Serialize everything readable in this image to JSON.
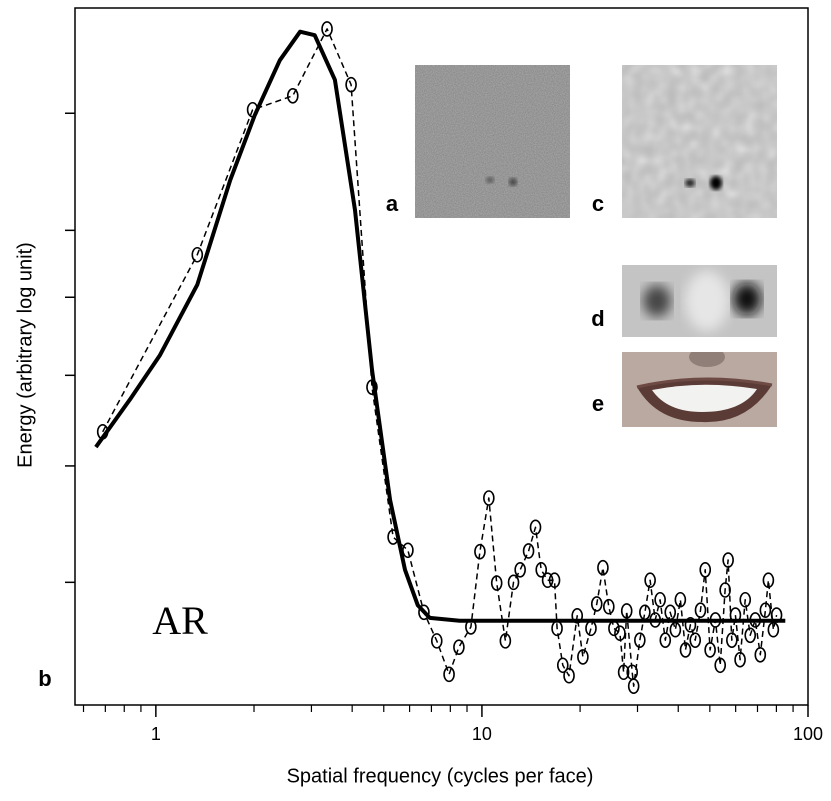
{
  "chart_data": {
    "type": "line",
    "xlabel": "Spatial frequency (cycles per face)",
    "ylabel": "Energy (arbitrary log unit)",
    "xscale": "log",
    "xlim": [
      0.565,
      100
    ],
    "ylim": [
      0,
      100
    ],
    "xticks": [
      1,
      10,
      100
    ],
    "yticks": [
      17.6,
      34.3,
      47.3,
      58.5,
      68.1,
      84.9
    ],
    "series": [
      {
        "style": "dashed-circles",
        "color": "#000000",
        "x": [
          0.687,
          1.34,
          1.98,
          2.63,
          3.35,
          3.97,
          4.6,
          5.34,
          5.93,
          6.64,
          7.27,
          7.93,
          8.5,
          9.25,
          9.86,
          10.5,
          11.1,
          11.8,
          12.5,
          13.1,
          13.9,
          14.6,
          15.2,
          15.9,
          16.7,
          17.0,
          17.7,
          18.5,
          19.6,
          20.4,
          21.6,
          22.5,
          23.5,
          24.5,
          25.4,
          26.5,
          27.2,
          27.8,
          28.9,
          29.2,
          30.5,
          31.6,
          32.8,
          34.0,
          35.2,
          36.5,
          37.8,
          39.2,
          40.6,
          42.1,
          43.6,
          45.1,
          46.8,
          48.4,
          50.1,
          52.0,
          53.8,
          55.7,
          56.9,
          58.4,
          59.9,
          61.9,
          64.2,
          66.5,
          68.9,
          71.4,
          74.0,
          75.6,
          78.3,
          80.1
        ],
        "values": [
          39.2,
          64.6,
          85.4,
          87.4,
          97.0,
          89.0,
          45.6,
          24.1,
          22.2,
          13.3,
          9.2,
          4.4,
          8.3,
          11.2,
          22.0,
          29.7,
          17.5,
          9.2,
          17.6,
          19.4,
          22.1,
          25.5,
          19.4,
          17.9,
          17.9,
          11.0,
          5.7,
          4.2,
          12.8,
          6.9,
          11.0,
          14.5,
          19.7,
          14.1,
          11.0,
          10.3,
          4.7,
          13.5,
          4.7,
          2.7,
          9.3,
          13.3,
          17.9,
          12.2,
          15.1,
          9.3,
          13.3,
          10.8,
          15.1,
          7.9,
          11.5,
          9.3,
          13.6,
          19.4,
          7.9,
          12.2,
          5.7,
          16.5,
          20.8,
          9.3,
          12.9,
          6.5,
          15.1,
          10.0,
          12.2,
          7.2,
          13.6,
          17.9,
          10.8,
          12.9
        ]
      },
      {
        "style": "solid",
        "color": "#000000",
        "x": [
          0.655,
          0.832,
          1.03,
          1.34,
          1.69,
          2.01,
          2.4,
          2.77,
          3.07,
          3.54,
          4.08,
          4.6,
          5.23,
          5.81,
          6.36,
          6.92,
          8.54,
          85.2
        ],
        "values": [
          37.0,
          43.8,
          50.2,
          60.3,
          75.3,
          84.6,
          92.5,
          96.6,
          96.1,
          89.7,
          71.0,
          48.1,
          29.4,
          19.4,
          14.3,
          12.5,
          12.1,
          12.1
        ]
      }
    ],
    "annotations": {
      "subject": "AR",
      "panel_b": "b",
      "panel_a": "a",
      "panel_c": "c",
      "panel_d": "d",
      "panel_e": "e"
    }
  }
}
